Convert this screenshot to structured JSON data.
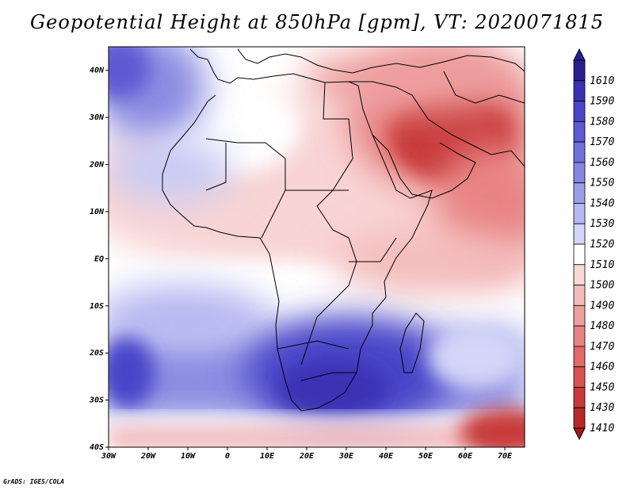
{
  "title": "Geopotential Height at 850hPa [gpm], VT: 2020071815",
  "footer": "GrADS: IGES/COLA",
  "map": {
    "lon_range": [
      -30,
      75
    ],
    "lat_range": [
      -40,
      45
    ],
    "lat_ticks": [
      {
        "value": 40,
        "label": "40N"
      },
      {
        "value": 30,
        "label": "30N"
      },
      {
        "value": 20,
        "label": "20N"
      },
      {
        "value": 10,
        "label": "10N"
      },
      {
        "value": 0,
        "label": "EQ"
      },
      {
        "value": -10,
        "label": "10S"
      },
      {
        "value": -20,
        "label": "20S"
      },
      {
        "value": -30,
        "label": "30S"
      },
      {
        "value": -40,
        "label": "40S"
      }
    ],
    "lon_ticks": [
      {
        "value": -30,
        "label": "30W"
      },
      {
        "value": -20,
        "label": "20W"
      },
      {
        "value": -10,
        "label": "10W"
      },
      {
        "value": 0,
        "label": "0"
      },
      {
        "value": 10,
        "label": "10E"
      },
      {
        "value": 20,
        "label": "20E"
      },
      {
        "value": 30,
        "label": "30E"
      },
      {
        "value": 40,
        "label": "40E"
      },
      {
        "value": 50,
        "label": "50E"
      },
      {
        "value": 60,
        "label": "60E"
      },
      {
        "value": 70,
        "label": "70E"
      }
    ]
  },
  "colorbar": {
    "levels": [
      {
        "label": "1610",
        "color": "#2a1e8f"
      },
      {
        "label": "1590",
        "color": "#3a31b4"
      },
      {
        "label": "1580",
        "color": "#4a45c8"
      },
      {
        "label": "1570",
        "color": "#5e5ad2"
      },
      {
        "label": "1560",
        "color": "#716fda"
      },
      {
        "label": "1550",
        "color": "#8686e2"
      },
      {
        "label": "1540",
        "color": "#9c9eea"
      },
      {
        "label": "1530",
        "color": "#b5b8f1"
      },
      {
        "label": "1520",
        "color": "#d3d6f8"
      },
      {
        "label": "1510",
        "color": "#ffffff"
      },
      {
        "label": "1500",
        "color": "#f9d8d8"
      },
      {
        "label": "1490",
        "color": "#f4bcbc"
      },
      {
        "label": "1480",
        "color": "#ee9f9f"
      },
      {
        "label": "1470",
        "color": "#e88383"
      },
      {
        "label": "1460",
        "color": "#e16a6a"
      },
      {
        "label": "1450",
        "color": "#d85252"
      },
      {
        "label": "1430",
        "color": "#c83a3a"
      },
      {
        "label": "1410",
        "color": "#b72828"
      }
    ],
    "low_color": "#a41818"
  }
}
